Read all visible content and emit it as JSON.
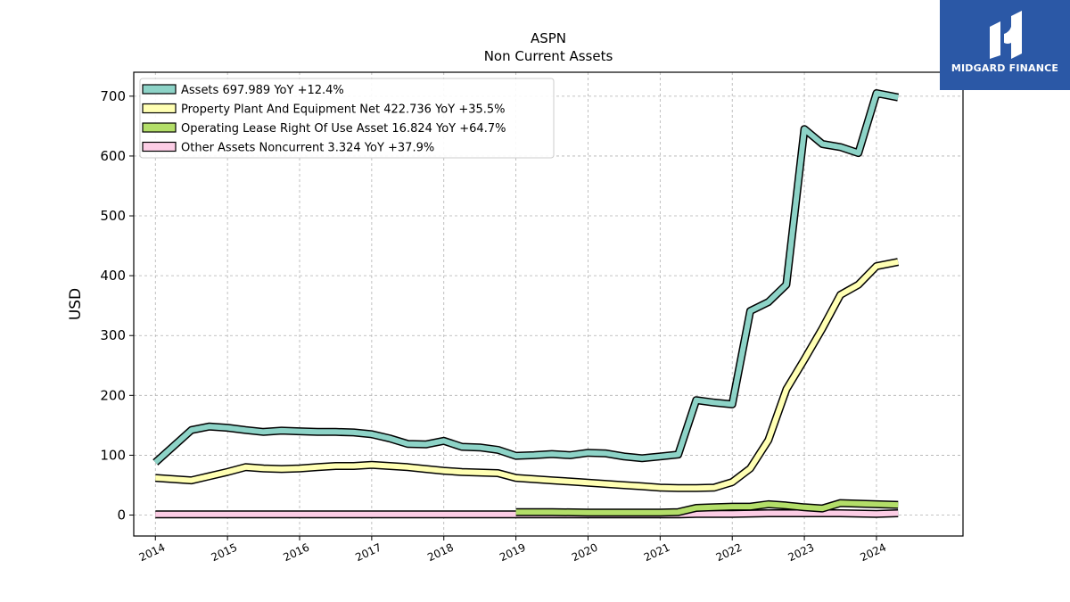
{
  "brand": {
    "name": "MIDGARD FINANCE",
    "color": "#2b58a6"
  },
  "chart_data": {
    "type": "line",
    "title": "ASPN",
    "subtitle": "Non Current  Assets",
    "xlabel": "",
    "ylabel": "USD",
    "xlim": [
      2013.7,
      2025.2
    ],
    "ylim": [
      -35,
      740
    ],
    "x_ticks": [
      2014,
      2015,
      2016,
      2017,
      2018,
      2019,
      2020,
      2021,
      2022,
      2023,
      2024
    ],
    "x_tick_labels": [
      "2014",
      "2015",
      "2016",
      "2017",
      "2018",
      "2019",
      "2020",
      "2021",
      "2022",
      "2023",
      "2024"
    ],
    "y_ticks": [
      0,
      100,
      200,
      300,
      400,
      500,
      600,
      700
    ],
    "y_tick_labels": [
      "0",
      "100",
      "200",
      "300",
      "400",
      "500",
      "600",
      "700"
    ],
    "grid": true,
    "legend_position": "top-left",
    "series": [
      {
        "name": "Assets",
        "legend": "Assets  697.989 YoY +12.4%",
        "color": "#8dd3c7",
        "points": [
          [
            2014.0,
            88
          ],
          [
            2014.5,
            142
          ],
          [
            2014.75,
            148
          ],
          [
            2015.0,
            146
          ],
          [
            2015.25,
            142
          ],
          [
            2015.5,
            139
          ],
          [
            2015.75,
            141
          ],
          [
            2016.0,
            140
          ],
          [
            2016.25,
            139
          ],
          [
            2016.5,
            139
          ],
          [
            2016.75,
            138
          ],
          [
            2017.0,
            135
          ],
          [
            2017.25,
            128
          ],
          [
            2017.5,
            119
          ],
          [
            2017.75,
            118
          ],
          [
            2018.0,
            124
          ],
          [
            2018.25,
            114
          ],
          [
            2018.5,
            113
          ],
          [
            2018.75,
            109
          ],
          [
            2019.0,
            99
          ],
          [
            2019.25,
            100
          ],
          [
            2019.5,
            102
          ],
          [
            2019.75,
            100
          ],
          [
            2020.0,
            104
          ],
          [
            2020.25,
            103
          ],
          [
            2020.5,
            98
          ],
          [
            2020.75,
            95
          ],
          [
            2021.0,
            98
          ],
          [
            2021.25,
            101
          ],
          [
            2021.5,
            192
          ],
          [
            2021.75,
            188
          ],
          [
            2022.0,
            185
          ],
          [
            2022.25,
            341
          ],
          [
            2022.5,
            356
          ],
          [
            2022.75,
            385
          ],
          [
            2023.0,
            645
          ],
          [
            2023.25,
            620
          ],
          [
            2023.5,
            615
          ],
          [
            2023.75,
            605
          ],
          [
            2024.0,
            705
          ],
          [
            2024.3,
            698
          ]
        ]
      },
      {
        "name": "Property Plant And Equipment Net",
        "legend": "Property Plant And Equipment Net  422.736 YoY +35.5%",
        "color": "#ffffb3",
        "points": [
          [
            2014.0,
            62
          ],
          [
            2014.5,
            58
          ],
          [
            2014.75,
            65
          ],
          [
            2015.0,
            72
          ],
          [
            2015.25,
            80
          ],
          [
            2015.5,
            78
          ],
          [
            2015.75,
            77
          ],
          [
            2016.0,
            78
          ],
          [
            2016.25,
            80
          ],
          [
            2016.5,
            82
          ],
          [
            2016.75,
            82
          ],
          [
            2017.0,
            84
          ],
          [
            2017.25,
            82
          ],
          [
            2017.5,
            80
          ],
          [
            2017.75,
            77
          ],
          [
            2018.0,
            74
          ],
          [
            2018.25,
            72
          ],
          [
            2018.5,
            71
          ],
          [
            2018.75,
            70
          ],
          [
            2019.0,
            62
          ],
          [
            2019.25,
            60
          ],
          [
            2019.5,
            58
          ],
          [
            2019.75,
            56
          ],
          [
            2020.0,
            54
          ],
          [
            2020.25,
            52
          ],
          [
            2020.5,
            50
          ],
          [
            2020.75,
            48
          ],
          [
            2021.0,
            46
          ],
          [
            2021.25,
            45
          ],
          [
            2021.5,
            45
          ],
          [
            2021.75,
            46
          ],
          [
            2022.0,
            55
          ],
          [
            2022.25,
            78
          ],
          [
            2022.5,
            125
          ],
          [
            2022.75,
            210
          ],
          [
            2023.0,
            260
          ],
          [
            2023.25,
            312
          ],
          [
            2023.5,
            368
          ],
          [
            2023.75,
            385
          ],
          [
            2024.0,
            416
          ],
          [
            2024.3,
            423
          ]
        ]
      },
      {
        "name": "Operating Lease Right Of Use Asset",
        "legend": "Operating Lease Right Of Use Asset  16.824 YoY +64.7%",
        "color": "#b3de69",
        "points": [
          [
            2019.0,
            5
          ],
          [
            2019.5,
            5
          ],
          [
            2020.0,
            4
          ],
          [
            2020.5,
            4
          ],
          [
            2021.0,
            4
          ],
          [
            2021.25,
            5
          ],
          [
            2021.5,
            12
          ],
          [
            2021.75,
            13
          ],
          [
            2022.0,
            14
          ],
          [
            2022.25,
            14
          ],
          [
            2022.5,
            18
          ],
          [
            2022.75,
            16
          ],
          [
            2023.0,
            13
          ],
          [
            2023.25,
            11
          ],
          [
            2023.5,
            20
          ],
          [
            2023.75,
            19
          ],
          [
            2024.0,
            18
          ],
          [
            2024.3,
            17
          ]
        ]
      },
      {
        "name": "Other Assets Noncurrent",
        "legend": "Other Assets Noncurrent  3.324 YoY +37.9%",
        "color": "#fccde5",
        "points": [
          [
            2014.0,
            1
          ],
          [
            2015.0,
            1
          ],
          [
            2016.0,
            1
          ],
          [
            2017.0,
            1
          ],
          [
            2018.0,
            1
          ],
          [
            2019.0,
            1
          ],
          [
            2020.0,
            1
          ],
          [
            2021.0,
            1
          ],
          [
            2021.25,
            1
          ],
          [
            2021.5,
            2
          ],
          [
            2022.0,
            2
          ],
          [
            2022.5,
            3
          ],
          [
            2023.0,
            3
          ],
          [
            2023.5,
            3
          ],
          [
            2024.0,
            2
          ],
          [
            2024.3,
            3
          ]
        ]
      }
    ]
  }
}
